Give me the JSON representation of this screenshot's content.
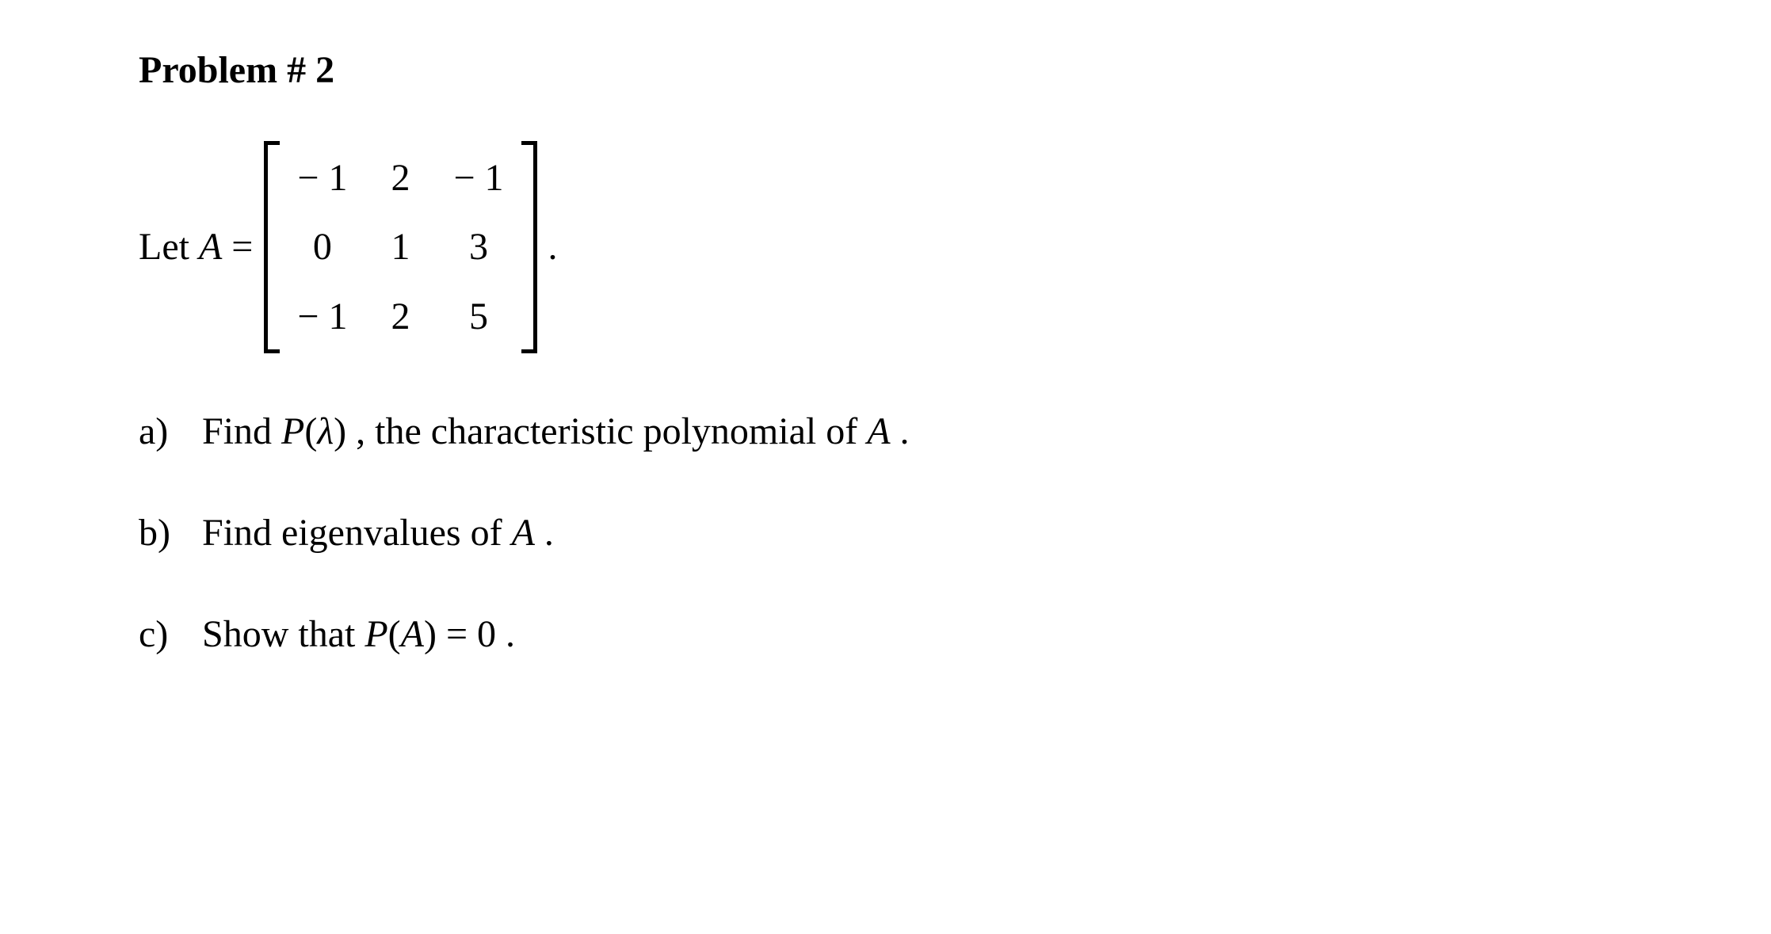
{
  "title": "Problem # 2",
  "let_prefix": "Let ",
  "matrix_name": "A",
  "equals": " = ",
  "matrix": {
    "rows": [
      [
        "− 1",
        "2",
        "− 1"
      ],
      [
        "0",
        "1",
        "3"
      ],
      [
        "− 1",
        "2",
        "5"
      ]
    ]
  },
  "period": ".",
  "parts": {
    "a": {
      "label": "a)",
      "pre": "Find ",
      "func": "P",
      "open": "(",
      "arg": "λ",
      "close": ")",
      "post1": " , the characteristic polynomial of ",
      "var": "A",
      "end": " ."
    },
    "b": {
      "label": "b)",
      "pre": "Find eigenvalues of ",
      "var": "A",
      "end": " ."
    },
    "c": {
      "label": "c)",
      "pre": "Show that ",
      "func": "P",
      "open": "(",
      "arg": "A",
      "close": ")",
      "eq": " = 0 ",
      "end": "."
    }
  },
  "styles": {
    "font_family": "Times New Roman",
    "font_size_pt": 36,
    "text_color": "#000000",
    "background_color": "#ffffff"
  }
}
